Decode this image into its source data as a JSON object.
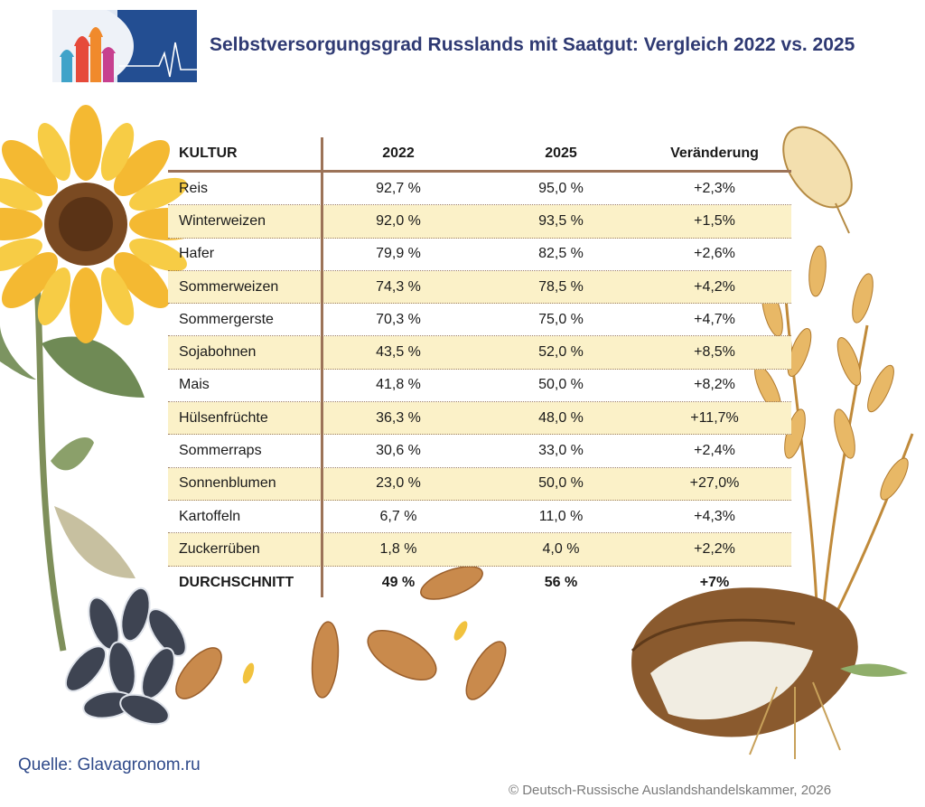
{
  "title": "Selbstversorgungsgrad Russlands mit Saatgut: Vergleich 2022 vs. 2025",
  "source": "Quelle: Glavagronom.ru",
  "copyright": "© Deutsch-Russische Auslandshandelskammer, 2026",
  "colors": {
    "title": "#2f3a73",
    "row_alt": "#fbf1c8",
    "rule": "#9c7358",
    "source": "#2f4a8a",
    "logo_bg": "#234e92"
  },
  "chart_data": {
    "type": "table",
    "columns": [
      "KULTUR",
      "2022",
      "2025",
      "Veränderung"
    ],
    "rows": [
      {
        "crop": "Reis",
        "y2022": "92,7 %",
        "y2025": "95,0 %",
        "change": "+2,3%"
      },
      {
        "crop": "Winterweizen",
        "y2022": "92,0 %",
        "y2025": "93,5 %",
        "change": "+1,5%"
      },
      {
        "crop": "Hafer",
        "y2022": "79,9 %",
        "y2025": "82,5 %",
        "change": "+2,6%"
      },
      {
        "crop": "Sommerweizen",
        "y2022": "74,3 %",
        "y2025": "78,5 %",
        "change": "+4,2%"
      },
      {
        "crop": "Sommergerste",
        "y2022": "70,3 %",
        "y2025": "75,0 %",
        "change": "+4,7%"
      },
      {
        "crop": "Sojabohnen",
        "y2022": "43,5 %",
        "y2025": "52,0 %",
        "change": "+8,5%"
      },
      {
        "crop": "Mais",
        "y2022": "41,8 %",
        "y2025": "50,0 %",
        "change": "+8,2%"
      },
      {
        "crop": "Hülsenfrüchte",
        "y2022": "36,3 %",
        "y2025": "48,0 %",
        "change": "+11,7%"
      },
      {
        "crop": "Sommerraps",
        "y2022": "30,6 %",
        "y2025": "33,0 %",
        "change": "+2,4%"
      },
      {
        "crop": "Sonnenblumen",
        "y2022": "23,0 %",
        "y2025": "50,0 %",
        "change": "+27,0%"
      },
      {
        "crop": "Kartoffeln",
        "y2022": "6,7 %",
        "y2025": "11,0 %",
        "change": "+4,3%"
      },
      {
        "crop": "Zuckerrüben",
        "y2022": "1,8 %",
        "y2025": "4,0 %",
        "change": "+2,2%"
      }
    ],
    "average": {
      "crop": "DURCHSCHNITT",
      "y2022": "49 %",
      "y2025": "56 %",
      "change": "+7%"
    }
  }
}
